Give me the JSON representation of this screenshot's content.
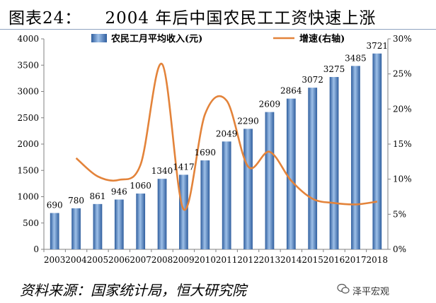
{
  "title": "图表24：    2004 年后中国农民工工资快速上涨",
  "source": "资料来源：国家统计局，恒大研究院",
  "watermark": "泽平宏观",
  "watermark_icon": "wechat-icon",
  "colors": {
    "bar": "#3f6fb4",
    "bar_light": "#9ec0e8",
    "line": "#e3833a",
    "axis": "#808080"
  },
  "chart_data": {
    "type": "bar+line",
    "categories": [
      "2003",
      "2004",
      "2005",
      "2006",
      "2007",
      "2008",
      "2009",
      "2010",
      "2011",
      "2012",
      "2013",
      "2014",
      "2015",
      "2016",
      "2017",
      "2018"
    ],
    "series": [
      {
        "name": "农民工月平均收入(元)",
        "type": "bar",
        "axis": "left",
        "values": [
          690,
          780,
          861,
          946,
          1060,
          1340,
          1417,
          1690,
          2049,
          2290,
          2609,
          2864,
          3072,
          3275,
          3485,
          3721
        ],
        "labels": [
          "690",
          "780",
          "861",
          "946",
          "1060",
          "1340",
          "1417",
          "1690",
          "2049",
          "2290",
          "2609",
          "2864",
          "3072",
          "3275",
          "3485",
          "3721"
        ]
      },
      {
        "name": "增速(右轴)",
        "type": "line",
        "axis": "right",
        "unit": "%",
        "values": [
          null,
          13.0,
          10.4,
          9.9,
          12.1,
          26.4,
          5.7,
          19.3,
          21.2,
          11.8,
          13.9,
          9.8,
          7.2,
          6.6,
          6.4,
          6.8
        ]
      }
    ],
    "y_left": {
      "min": 0,
      "max": 4000,
      "ticks": [
        0,
        500,
        1000,
        1500,
        2000,
        2500,
        3000,
        3500,
        4000
      ]
    },
    "y_right": {
      "min": 0,
      "max": 30,
      "ticks": [
        "0%",
        "5%",
        "10%",
        "15%",
        "20%",
        "25%",
        "30%"
      ]
    },
    "legend_placement": "top",
    "grid": false
  }
}
